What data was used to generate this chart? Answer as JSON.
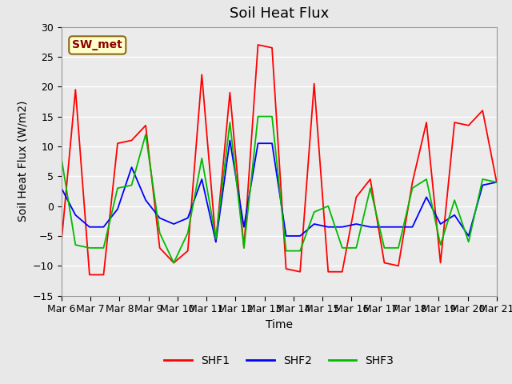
{
  "title": "Soil Heat Flux",
  "ylabel": "Soil Heat Flux (W/m2)",
  "xlabel": "Time",
  "ylim": [
    -15,
    30
  ],
  "yticks": [
    -15,
    -10,
    -5,
    0,
    5,
    10,
    15,
    20,
    25,
    30
  ],
  "xtick_labels": [
    "Mar 6",
    "Mar 7",
    "Mar 8",
    "Mar 9",
    "Mar 10",
    "Mar 11",
    "Mar 12",
    "Mar 13",
    "Mar 14",
    "Mar 15",
    "Mar 16",
    "Mar 17",
    "Mar 18",
    "Mar 19",
    "Mar 20",
    "Mar 21"
  ],
  "annotation": "SW_met",
  "annotation_color": "#8B0000",
  "annotation_bg": "#FFFFCC",
  "fig_bg": "#E8E8E8",
  "plot_bg": "#EBEBEB",
  "shf1_color": "#FF0000",
  "shf2_color": "#0000FF",
  "shf3_color": "#00BB00",
  "shf1": [
    -6.0,
    19.5,
    -11.5,
    -11.5,
    10.5,
    11.0,
    13.5,
    -7.0,
    -9.5,
    -7.5,
    22.0,
    -6.0,
    19.0,
    -7.0,
    27.0,
    26.5,
    -10.5,
    -11.0,
    20.5,
    -11.0,
    -11.0,
    1.5,
    4.5,
    -9.5,
    -10.0,
    4.0,
    14.0,
    -9.5,
    14.0,
    13.5,
    16.0,
    4.0
  ],
  "shf2": [
    3.0,
    -1.5,
    -3.5,
    -3.5,
    -0.5,
    6.5,
    1.0,
    -2.0,
    -3.0,
    -2.0,
    4.5,
    -6.0,
    11.0,
    -3.5,
    10.5,
    10.5,
    -5.0,
    -5.0,
    -3.0,
    -3.5,
    -3.5,
    -3.0,
    -3.5,
    -3.5,
    -3.5,
    -3.5,
    1.5,
    -3.0,
    -1.5,
    -5.0,
    3.5,
    4.0
  ],
  "shf3": [
    8.0,
    -6.5,
    -7.0,
    -7.0,
    3.0,
    3.5,
    12.0,
    -4.5,
    -9.5,
    -4.5,
    8.0,
    -5.5,
    14.0,
    -7.0,
    15.0,
    15.0,
    -7.5,
    -7.5,
    -1.0,
    0.0,
    -7.0,
    -7.0,
    3.0,
    -7.0,
    -7.0,
    3.0,
    4.5,
    -6.5,
    1.0,
    -6.0,
    4.5,
    4.0
  ],
  "legend_labels": [
    "SHF1",
    "SHF2",
    "SHF3"
  ],
  "title_fontsize": 13,
  "axis_label_fontsize": 10,
  "tick_fontsize": 9,
  "linewidth": 1.3
}
